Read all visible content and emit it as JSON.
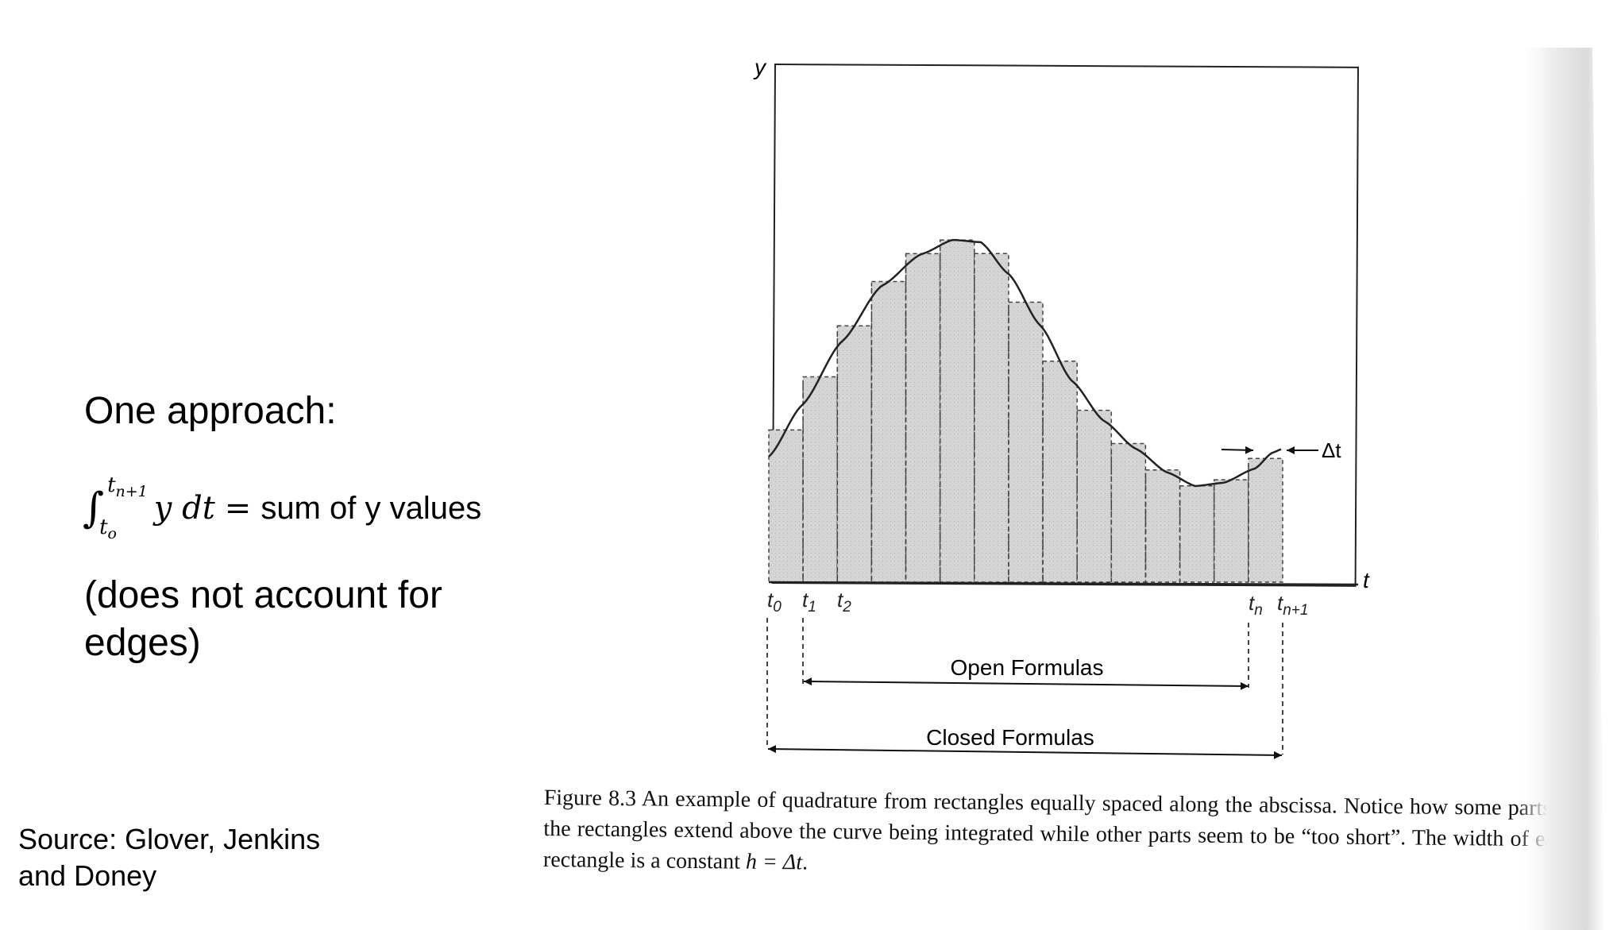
{
  "slide": {
    "heading": "One approach:",
    "formula": {
      "integral_sign": "∫",
      "upper_limit": "t",
      "upper_limit_sub": "n+1",
      "lower_limit": "t",
      "lower_limit_sub": "o",
      "integrand": "y dt",
      "equals": "=",
      "rhs": "sum of y values"
    },
    "note": "(does not account for edges)",
    "source": "Source: Glover, Jenkins and Doney"
  },
  "figure": {
    "y_axis_label": "y",
    "t_axis_label": "t",
    "delta_label": "Δt",
    "tick_labels": [
      {
        "base": "t",
        "sub": "0"
      },
      {
        "base": "t",
        "sub": "1"
      },
      {
        "base": "t",
        "sub": "2"
      },
      {
        "base": "t",
        "sub": "n"
      },
      {
        "base": "t",
        "sub": "n+1"
      }
    ],
    "open_formulas_label": "Open Formulas",
    "closed_formulas_label": "Closed Formulas",
    "rectangle_count": 15,
    "colors": {
      "fill": "#d2d2d2",
      "line": "#222222",
      "dash": "#444444"
    },
    "caption_prefix": "Figure 8.3  An example of quadrature from rectangles equally spaced along the abscissa. Notice how some parts of the rectangles extend above the curve being integrated while other parts seem to be “too short”. The width of each rectangle is a constant ",
    "caption_math": "h = Δt",
    "caption_suffix": "."
  }
}
